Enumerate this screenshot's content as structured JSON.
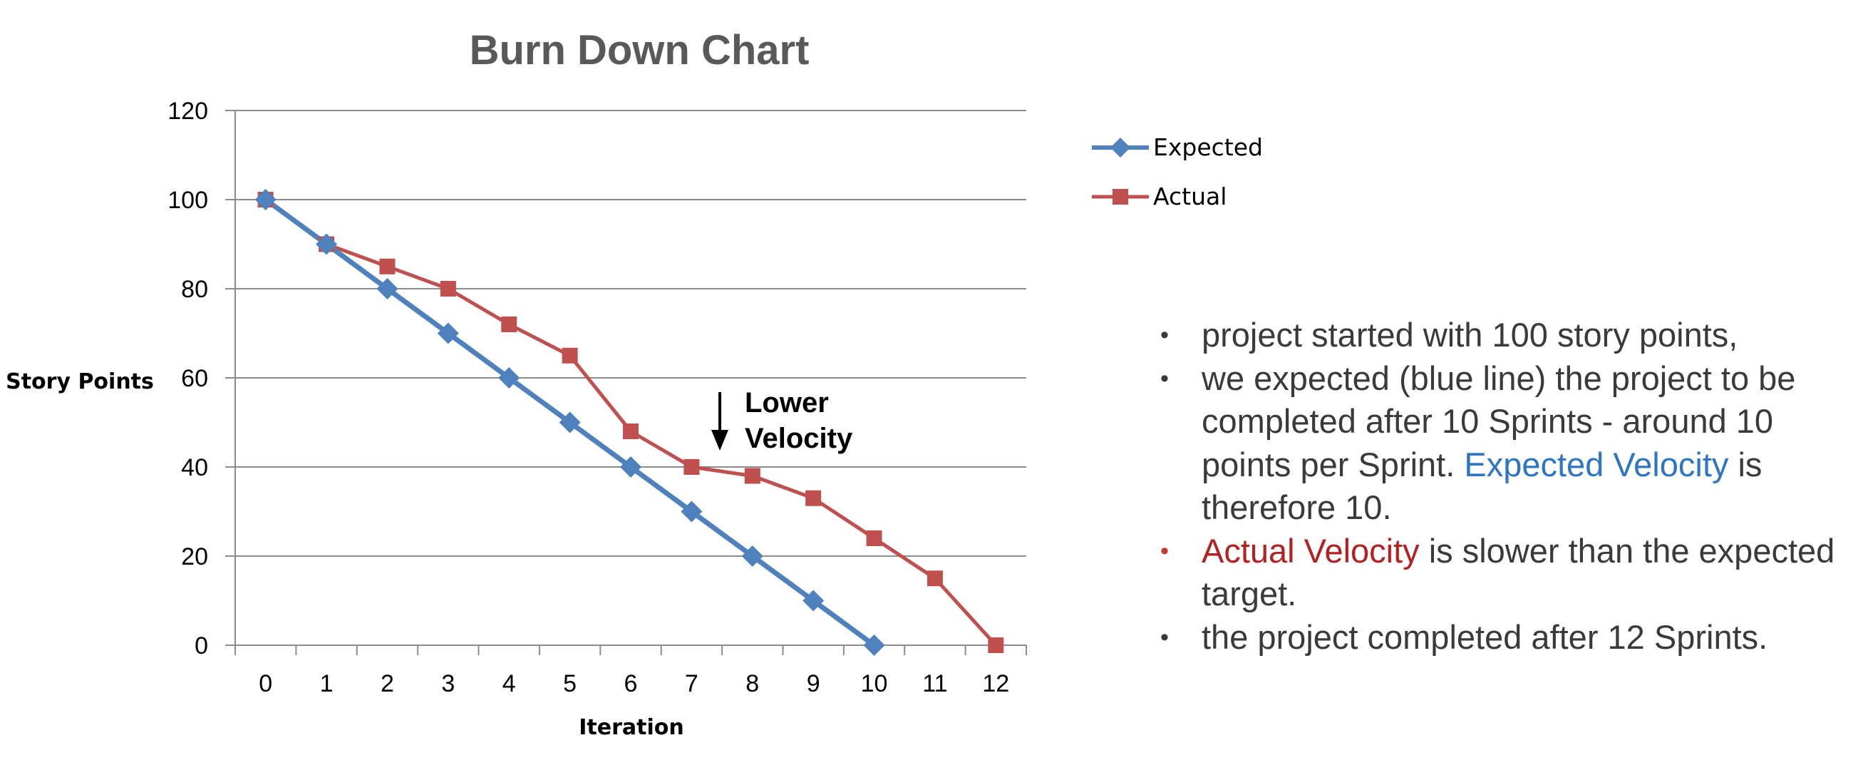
{
  "chart_data": {
    "type": "line",
    "title": "Burn Down Chart",
    "xlabel": "Iteration",
    "ylabel": "Story Points",
    "x": [
      0,
      1,
      2,
      3,
      4,
      5,
      6,
      7,
      8,
      9,
      10,
      11,
      12
    ],
    "xlim": [
      0,
      12
    ],
    "ylim": [
      0,
      120
    ],
    "yticks": [
      0,
      20,
      40,
      60,
      80,
      100,
      120
    ],
    "grid": true,
    "legend": "right",
    "series": [
      {
        "name": "Expected",
        "color": "#4f81bd",
        "marker": "diamond",
        "values": [
          100,
          90,
          80,
          70,
          60,
          50,
          40,
          30,
          20,
          10,
          0,
          null,
          null
        ]
      },
      {
        "name": "Actual",
        "color": "#c0504d",
        "marker": "square",
        "values": [
          100,
          90,
          85,
          80,
          72,
          65,
          48,
          40,
          38,
          33,
          24,
          15,
          0
        ]
      }
    ],
    "annotations": [
      {
        "text_line1": "Lower",
        "text_line2": "Velocity",
        "arrow": "down"
      }
    ]
  },
  "notes": {
    "bullet_char": "•",
    "item1": "project started with 100 story points,",
    "item2": "we expected (blue line) the project to be completed after 10 Sprints  -  around 10 points per Sprint.",
    "item2_highlight": "Expected Velocity",
    "item2_tail": "is therefore 10.",
    "item3_highlight": "Actual Velocity",
    "item3_tail": "is slower than the expected target.",
    "item4": "the project completed after 12 Sprints.",
    "colors": {
      "expected_text": "#2e75c6",
      "actual_text": "#b22222"
    }
  }
}
